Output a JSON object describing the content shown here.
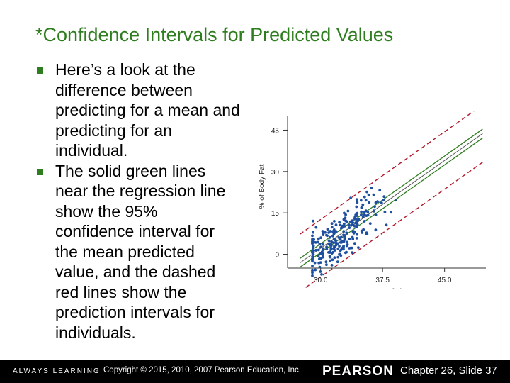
{
  "slide": {
    "title": "*Confidence Intervals for Predicted Values",
    "bullets": [
      "Here’s a look at the difference between predicting for a mean and predicting for an individual.",
      "The solid green lines near the regression line show the 95% confidence interval for the mean predicted value, and the dashed red lines show the prediction intervals for individuals."
    ]
  },
  "colors": {
    "title": "#2e7d1f",
    "points": "#1f4fa0",
    "confidence_lines": "#2e7d1f",
    "prediction_lines": "#b0182a",
    "footer_bg": "#000000"
  },
  "chart_data": {
    "type": "scatter",
    "xlabel": "Waist (in.)",
    "ylabel": "% of Body Fat",
    "x_ticks": [
      "30.0",
      "37.5",
      "45.0"
    ],
    "y_ticks": [
      "0",
      "15",
      "30",
      "45"
    ],
    "xlim": [
      26,
      50
    ],
    "ylim": [
      -5,
      50
    ],
    "regression": {
      "intercept": -61.4,
      "slope": 2.12
    },
    "confidence_band_halfwidth": 1.6,
    "prediction_band_halfwidth": 10.4
  },
  "footer": {
    "tagline": "ALWAYS LEARNING",
    "copyright": "Copyright © 2015, 2010, 2007 Pearson Education, Inc.",
    "brand": "PEARSON",
    "slide_number": "Chapter 26, Slide 37"
  }
}
